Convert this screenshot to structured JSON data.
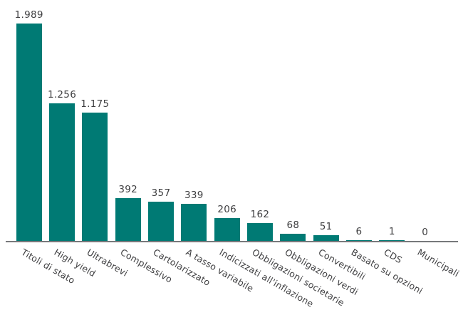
{
  "chart": {
    "bar_color": "#007a74",
    "axis_color": "#77787b",
    "text_color": "#3f3f41",
    "background_color": "#ffffff"
  },
  "chart_data": {
    "type": "bar",
    "title": "",
    "xlabel": "",
    "ylabel": "",
    "categories": [
      "Titoli di stato",
      "High yield",
      "Ultrabrevi",
      "Complessivo",
      "Cartolarizzato",
      "A tasso variabile",
      "Indicizzati all'inflazione",
      "Obbligazioni societarie",
      "Obbligazioni verdi",
      "Convertibili",
      "Basato su opzioni",
      "CDS",
      "Municipali"
    ],
    "values": [
      1989,
      1256,
      1175,
      392,
      357,
      339,
      206,
      162,
      68,
      51,
      6,
      1,
      0
    ],
    "value_labels": [
      "1.989",
      "1.256",
      "1.175",
      "392",
      "357",
      "339",
      "206",
      "162",
      "68",
      "51",
      "6",
      "1",
      "0"
    ],
    "ylim": [
      0,
      2100
    ],
    "grid": false,
    "legend": null,
    "bar_orientation": "vertical",
    "category_label_rotation_deg": 30
  }
}
